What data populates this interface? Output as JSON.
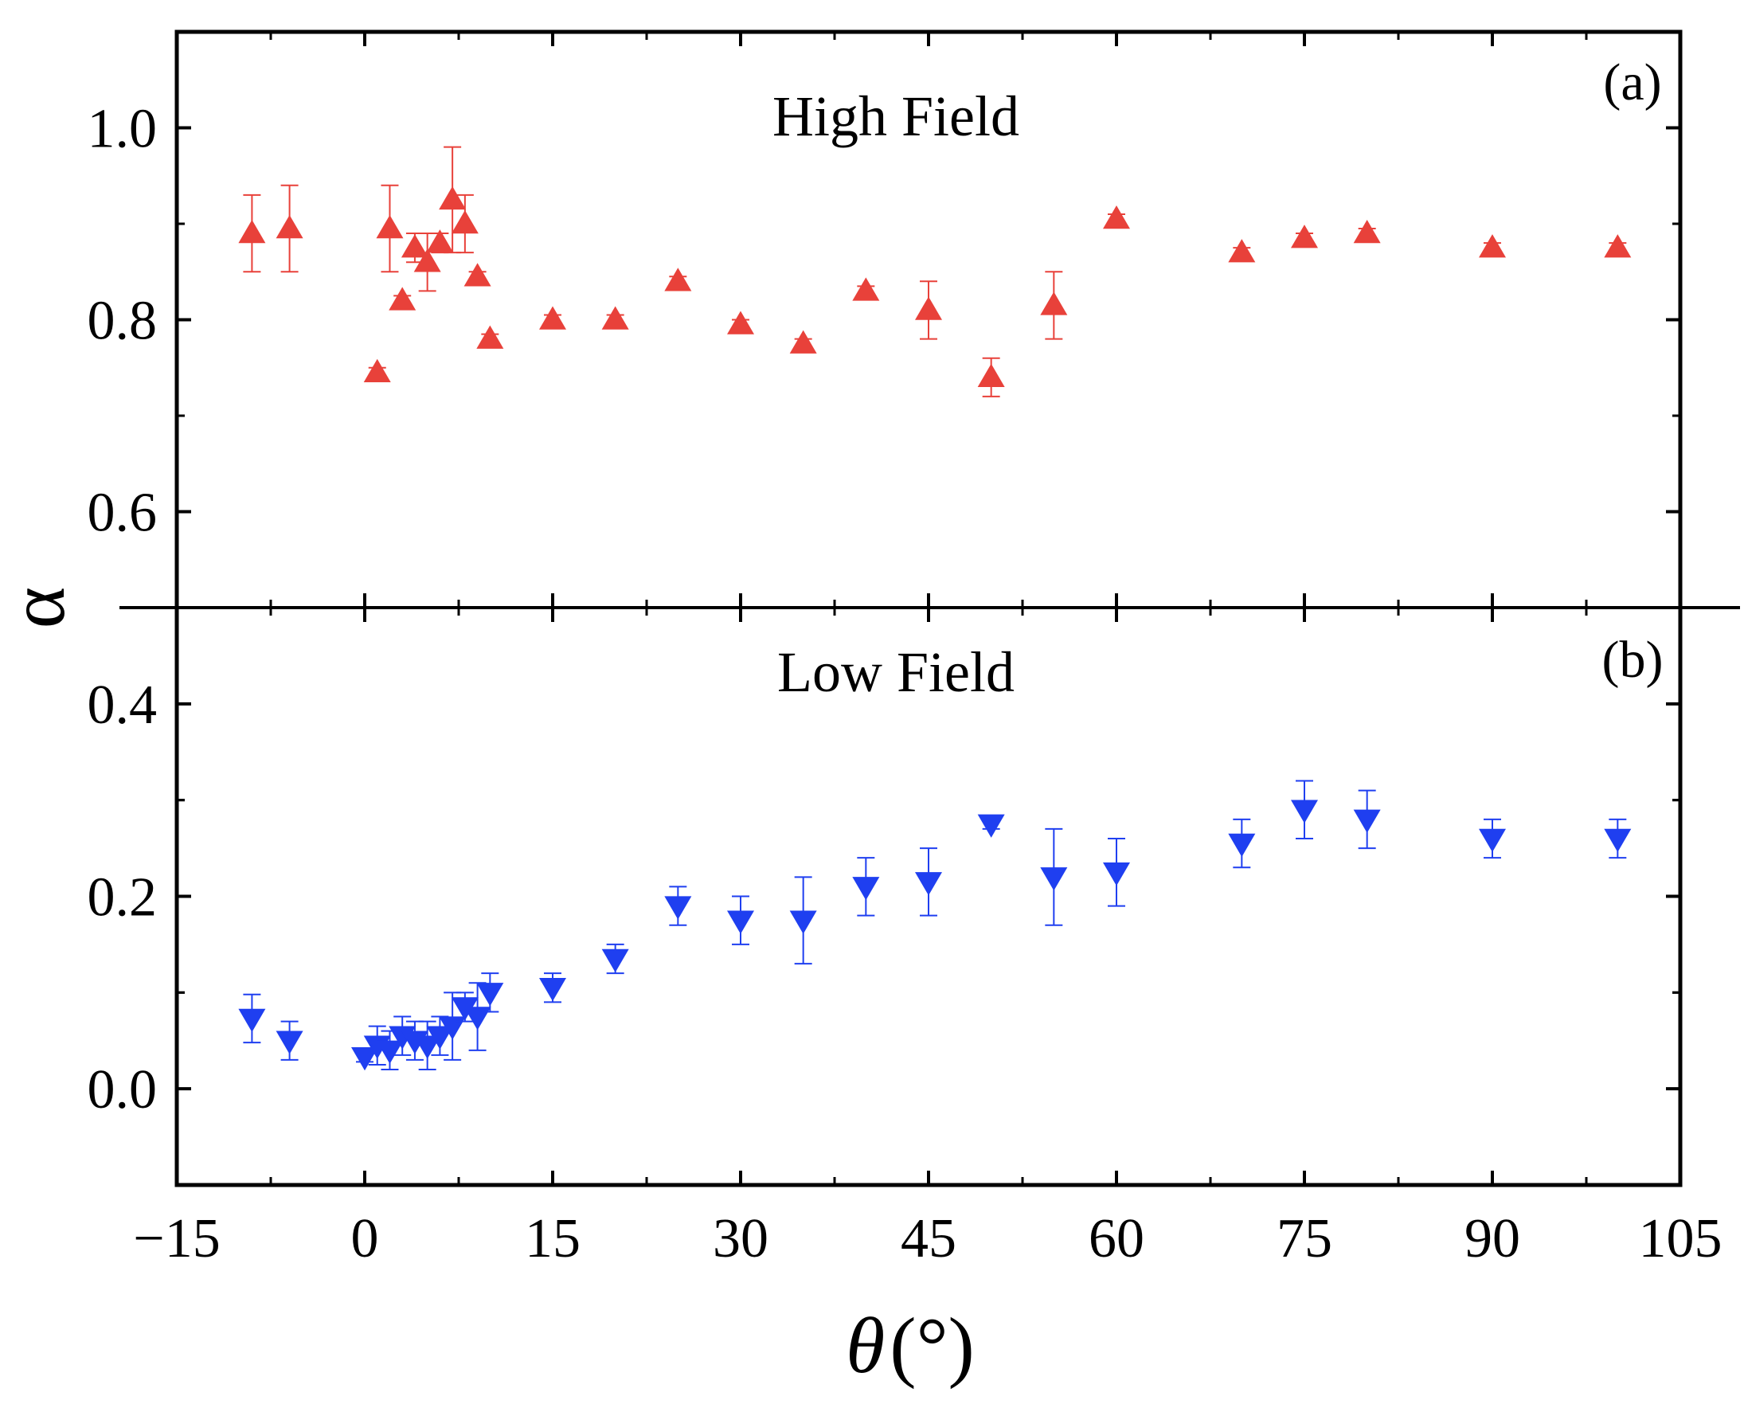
{
  "chart_data": {
    "type": "scatter",
    "xlabel_symbol": "θ",
    "xlabel_unit": "(°)",
    "ylabel": "α",
    "xlim": [
      -15,
      105
    ],
    "xticks": [
      -15,
      0,
      15,
      30,
      45,
      60,
      75,
      90,
      105
    ],
    "xtick_labels": [
      "−15",
      "0",
      "15",
      "30",
      "45",
      "60",
      "75",
      "90",
      "105"
    ],
    "panels": [
      {
        "id": "a",
        "tag": "(a)",
        "title": "High Field",
        "ylim": [
          0.5,
          1.1
        ],
        "yticks": [
          0.6,
          0.8,
          1.0
        ],
        "ytick_labels": [
          "0.6",
          "0.8",
          "1.0"
        ],
        "marker": "triangle-up",
        "color": "#e8413a",
        "points": [
          {
            "x": -9,
            "y": 0.89,
            "err": 0.04
          },
          {
            "x": -6,
            "y": 0.895,
            "err": 0.045
          },
          {
            "x": 1,
            "y": 0.745,
            "err": 0.005
          },
          {
            "x": 2,
            "y": 0.895,
            "err": 0.045
          },
          {
            "x": 3,
            "y": 0.82,
            "err": 0.005
          },
          {
            "x": 4,
            "y": 0.875,
            "err": 0.015
          },
          {
            "x": 5,
            "y": 0.86,
            "err": 0.03
          },
          {
            "x": 6,
            "y": 0.88,
            "err": 0.01
          },
          {
            "x": 7,
            "y": 0.925,
            "err": 0.055
          },
          {
            "x": 8,
            "y": 0.9,
            "err": 0.03
          },
          {
            "x": 9,
            "y": 0.845,
            "err": 0.005
          },
          {
            "x": 10,
            "y": 0.78,
            "err": 0.005
          },
          {
            "x": 15,
            "y": 0.8,
            "err": 0.005
          },
          {
            "x": 20,
            "y": 0.8,
            "err": 0.005
          },
          {
            "x": 25,
            "y": 0.84,
            "err": 0.005
          },
          {
            "x": 30,
            "y": 0.795,
            "err": 0.005
          },
          {
            "x": 35,
            "y": 0.775,
            "err": 0.005
          },
          {
            "x": 40,
            "y": 0.83,
            "err": 0.005
          },
          {
            "x": 45,
            "y": 0.81,
            "err": 0.03
          },
          {
            "x": 50,
            "y": 0.74,
            "err": 0.02
          },
          {
            "x": 55,
            "y": 0.815,
            "err": 0.035
          },
          {
            "x": 60,
            "y": 0.905,
            "err": 0.005
          },
          {
            "x": 70,
            "y": 0.87,
            "err": 0.005
          },
          {
            "x": 75,
            "y": 0.885,
            "err": 0.005
          },
          {
            "x": 80,
            "y": 0.89,
            "err": 0.005
          },
          {
            "x": 90,
            "y": 0.875,
            "err": 0.005
          },
          {
            "x": 100,
            "y": 0.875,
            "err": 0.005
          }
        ]
      },
      {
        "id": "b",
        "tag": "(b)",
        "title": "Low Field",
        "ylim": [
          -0.1,
          0.5
        ],
        "yticks": [
          0.0,
          0.2,
          0.4
        ],
        "ytick_labels": [
          "0.0",
          "0.2",
          "0.4"
        ],
        "marker": "triangle-down",
        "color": "#1f3ff0",
        "points": [
          {
            "x": -9,
            "y": 0.073,
            "err": 0.025
          },
          {
            "x": -6,
            "y": 0.05,
            "err": 0.02
          },
          {
            "x": 0,
            "y": 0.033,
            "err": 0.005
          },
          {
            "x": 1,
            "y": 0.045,
            "err": 0.02
          },
          {
            "x": 2,
            "y": 0.04,
            "err": 0.02
          },
          {
            "x": 3,
            "y": 0.055,
            "err": 0.02
          },
          {
            "x": 4,
            "y": 0.05,
            "err": 0.02
          },
          {
            "x": 5,
            "y": 0.045,
            "err": 0.025
          },
          {
            "x": 6,
            "y": 0.055,
            "err": 0.02
          },
          {
            "x": 7,
            "y": 0.065,
            "err": 0.035
          },
          {
            "x": 8,
            "y": 0.085,
            "err": 0.015
          },
          {
            "x": 9,
            "y": 0.075,
            "err": 0.035
          },
          {
            "x": 10,
            "y": 0.1,
            "err": 0.02
          },
          {
            "x": 15,
            "y": 0.105,
            "err": 0.015
          },
          {
            "x": 20,
            "y": 0.135,
            "err": 0.015
          },
          {
            "x": 25,
            "y": 0.19,
            "err": 0.02
          },
          {
            "x": 30,
            "y": 0.175,
            "err": 0.025
          },
          {
            "x": 35,
            "y": 0.175,
            "err": 0.045
          },
          {
            "x": 40,
            "y": 0.21,
            "err": 0.03
          },
          {
            "x": 45,
            "y": 0.215,
            "err": 0.035
          },
          {
            "x": 50,
            "y": 0.275,
            "err": 0.005
          },
          {
            "x": 55,
            "y": 0.22,
            "err": 0.05
          },
          {
            "x": 60,
            "y": 0.225,
            "err": 0.035
          },
          {
            "x": 70,
            "y": 0.255,
            "err": 0.025
          },
          {
            "x": 75,
            "y": 0.29,
            "err": 0.03
          },
          {
            "x": 80,
            "y": 0.28,
            "err": 0.03
          },
          {
            "x": 90,
            "y": 0.26,
            "err": 0.02
          },
          {
            "x": 100,
            "y": 0.26,
            "err": 0.02
          }
        ]
      }
    ]
  }
}
